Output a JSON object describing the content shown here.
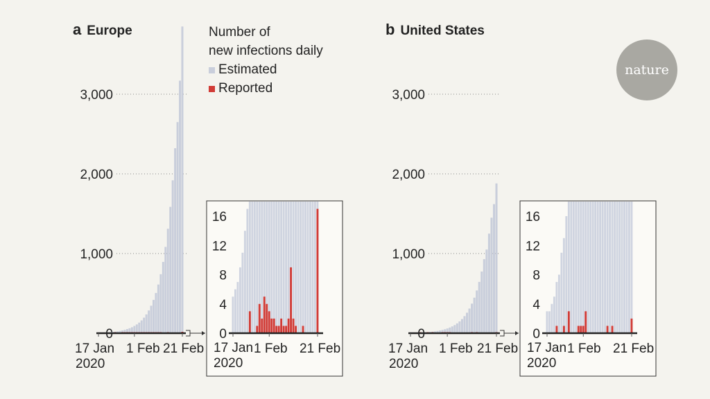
{
  "logo": "nature",
  "legend": {
    "title_line1": "Number of",
    "title_line2": "new infections daily",
    "estimated": "Estimated",
    "reported": "Reported"
  },
  "colors": {
    "estimated": "#c9cedb",
    "reported": "#d13b36",
    "background": "#f4f3ee"
  },
  "chart_data": [
    {
      "type": "bar",
      "panel": "a",
      "title": "Europe",
      "x_start": "17 Jan 2020",
      "x_end": "21 Feb 2020",
      "xticks": [
        "17 Jan",
        "1 Feb",
        "21 Feb"
      ],
      "xtick_year": "2020",
      "yticks": [
        "0",
        "1,000",
        "2,000",
        "3,000"
      ],
      "ylim": [
        0,
        3900
      ],
      "series": [
        {
          "name": "Estimated",
          "values": [
            5,
            6,
            7,
            9,
            11,
            14,
            17,
            20,
            24,
            29,
            35,
            43,
            52,
            62,
            75,
            91,
            110,
            133,
            161,
            195,
            236,
            285,
            345,
            418,
            505,
            611,
            740,
            895,
            1083,
            1311,
            1586,
            1919,
            2322,
            2650,
            3170,
            3850
          ]
        },
        {
          "name": "Reported",
          "values": [
            0,
            0,
            0,
            0,
            0,
            0,
            0,
            3,
            0,
            0,
            1,
            4,
            2,
            5,
            4,
            3,
            2,
            2,
            1,
            1,
            2,
            1,
            1,
            2,
            9,
            2,
            1,
            0,
            0,
            1,
            0,
            0,
            0,
            0,
            0,
            17
          ]
        }
      ],
      "inset": {
        "yticks": [
          "0",
          "4",
          "8",
          "12",
          "16"
        ],
        "ylim": [
          0,
          17.5
        ],
        "xticks": [
          "17 Jan",
          "1 Feb",
          "21 Feb"
        ],
        "xtick_year": "2020"
      }
    },
    {
      "type": "bar",
      "panel": "b",
      "title": "United States",
      "x_start": "17 Jan 2020",
      "x_end": "21 Feb 2020",
      "xticks": [
        "17 Jan",
        "1 Feb",
        "21 Feb"
      ],
      "xtick_year": "2020",
      "yticks": [
        "0",
        "1,000",
        "2,000",
        "3,000"
      ],
      "ylim": [
        0,
        3900
      ],
      "series": [
        {
          "name": "Estimated",
          "values": [
            3,
            3,
            4,
            5,
            7,
            8,
            11,
            13,
            16,
            19,
            23,
            28,
            34,
            41,
            49,
            59,
            71,
            85,
            102,
            123,
            148,
            178,
            214,
            257,
            309,
            371,
            446,
            536,
            644,
            774,
            930,
            1050,
            1250,
            1450,
            1620,
            1880
          ]
        },
        {
          "name": "Reported",
          "values": [
            0,
            0,
            0,
            0,
            1,
            0,
            0,
            1,
            0,
            3,
            0,
            0,
            0,
            1,
            1,
            1,
            3,
            0,
            0,
            0,
            0,
            0,
            0,
            0,
            0,
            1,
            0,
            1,
            0,
            0,
            0,
            0,
            0,
            0,
            0,
            2
          ]
        }
      ],
      "inset": {
        "yticks": [
          "0",
          "4",
          "8",
          "12",
          "16"
        ],
        "ylim": [
          0,
          17.5
        ],
        "xticks": [
          "17 Jan",
          "1 Feb",
          "21 Feb"
        ],
        "xtick_year": "2020"
      }
    }
  ]
}
